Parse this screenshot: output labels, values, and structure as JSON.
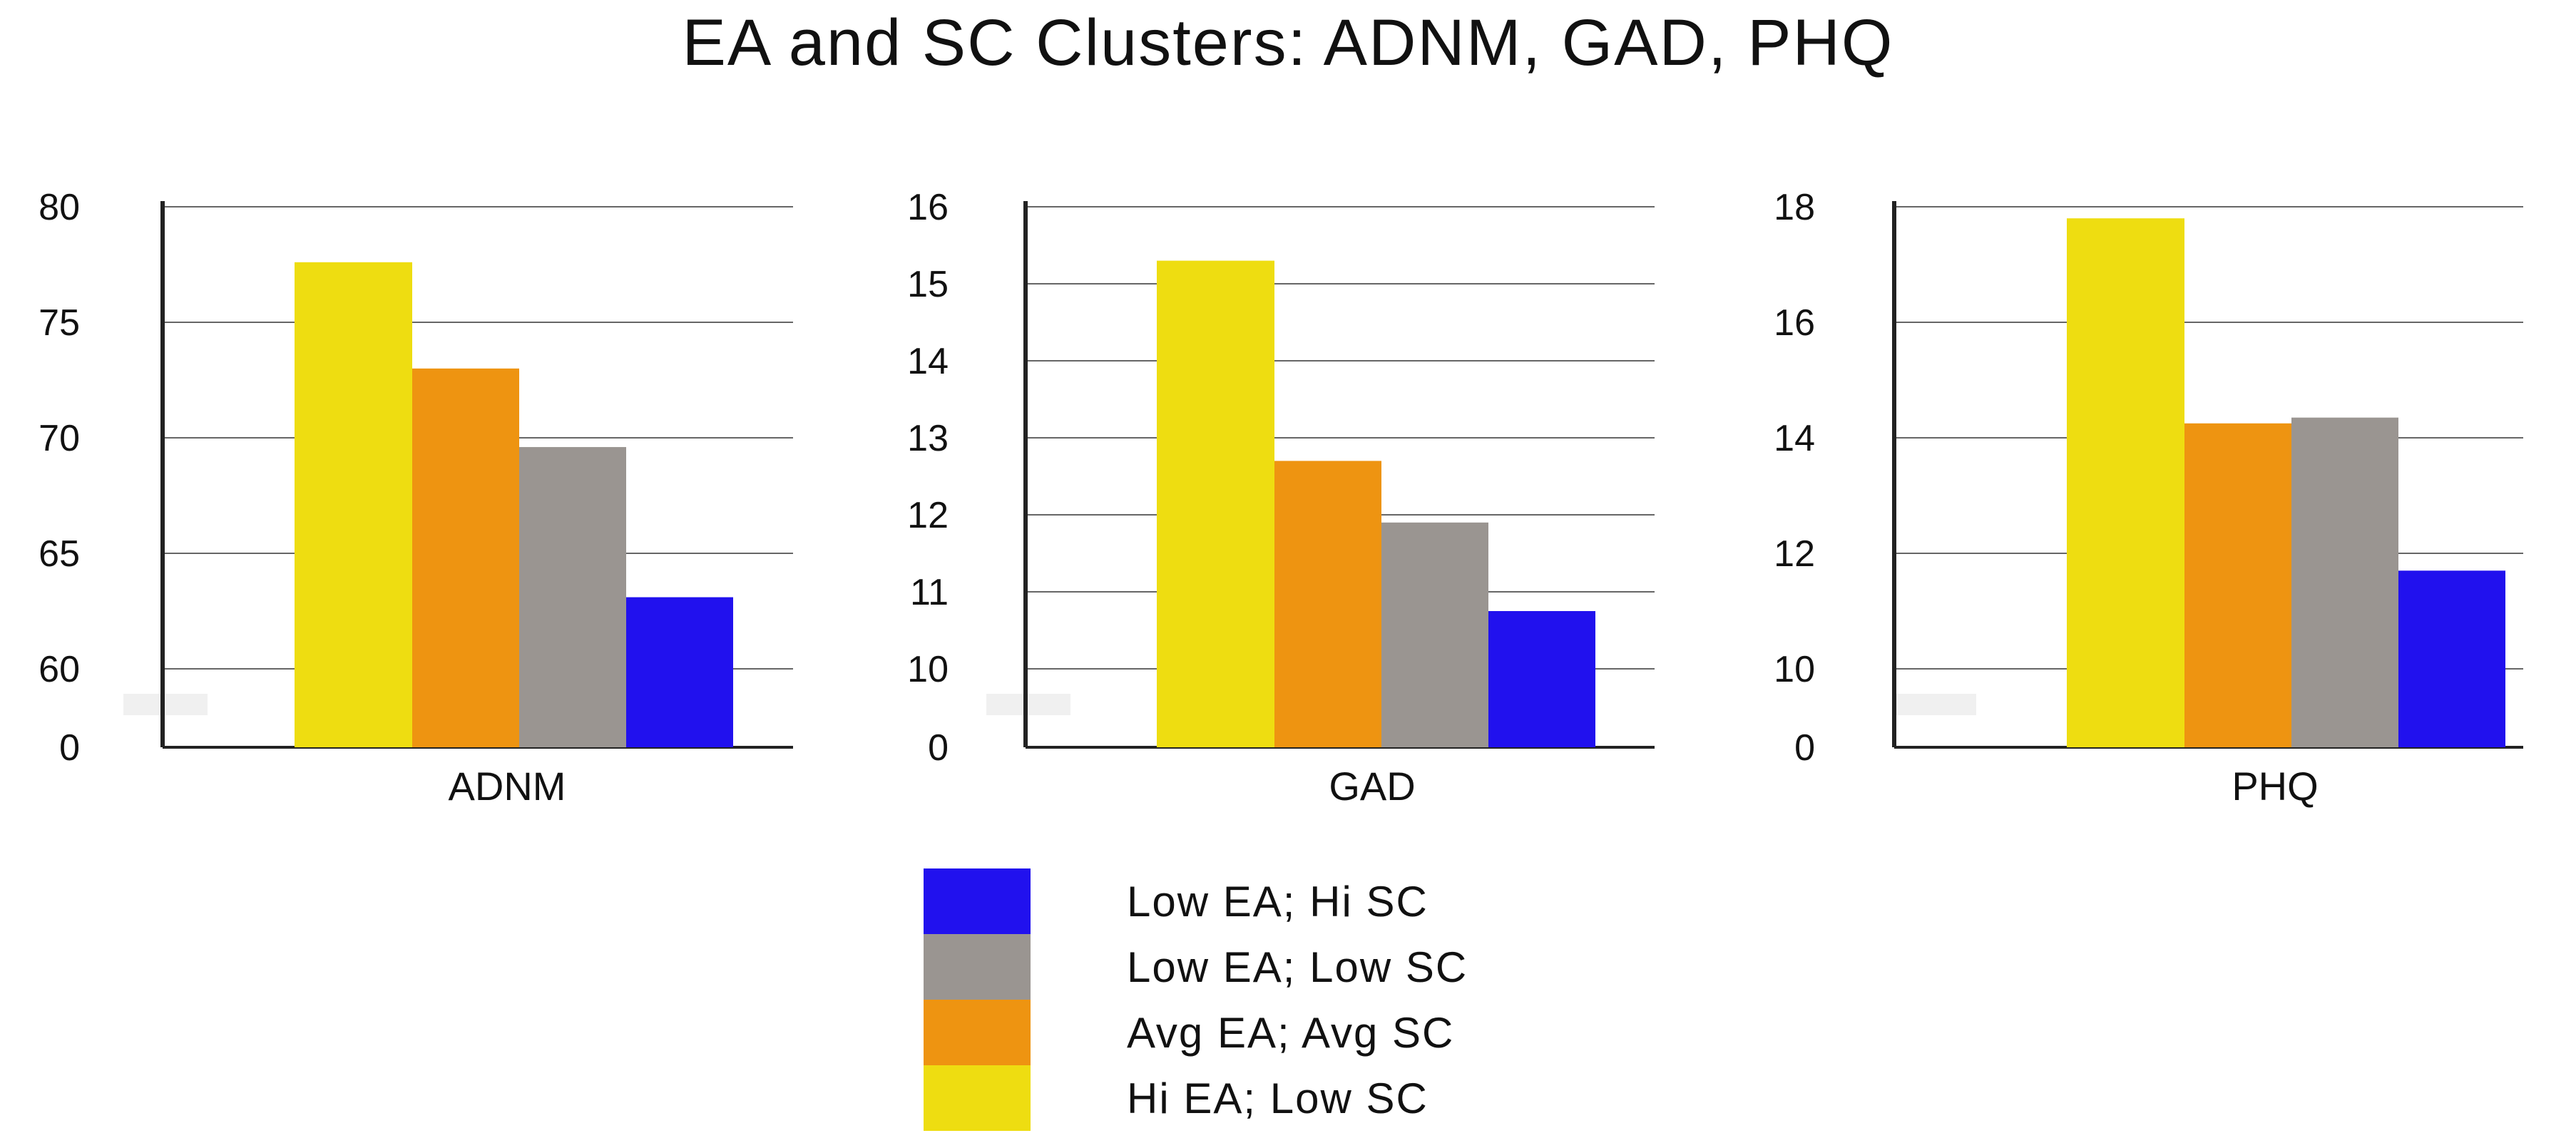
{
  "chart_data": {
    "type": "bar",
    "title": "EA and SC Clusters: ADNM, GAD, PHQ",
    "series": [
      {
        "name": "Hi EA; Low SC",
        "color": "#EEDD11"
      },
      {
        "name": "Avg EA; Avg SC",
        "color": "#EE9411"
      },
      {
        "name": "Low EA; Low SC",
        "color": "#9A9591"
      },
      {
        "name": "Low EA; Hi SC",
        "color": "#2111EE"
      }
    ],
    "legend_order": [
      "Low EA; Hi SC",
      "Low EA; Low SC",
      "Avg EA; Avg SC",
      "Hi EA; Low SC"
    ],
    "panels": [
      {
        "category": "ADNM",
        "ticks": [
          80,
          75,
          70,
          65,
          60
        ],
        "ylim": [
          60,
          80
        ],
        "break_label": "0",
        "values": [
          77.6,
          73.0,
          69.6,
          63.1
        ]
      },
      {
        "category": "GAD",
        "ticks": [
          16,
          15,
          14,
          13,
          12,
          11,
          10
        ],
        "ylim": [
          10,
          16
        ],
        "break_label": "0",
        "values": [
          15.3,
          12.7,
          11.9,
          10.75
        ]
      },
      {
        "category": "PHQ",
        "ticks": [
          18,
          16,
          14,
          12,
          10
        ],
        "ylim": [
          10,
          18
        ],
        "break_label": "0",
        "values": [
          17.8,
          14.25,
          14.35,
          11.7
        ]
      }
    ],
    "grid": true,
    "legend_position": "bottom-center"
  }
}
